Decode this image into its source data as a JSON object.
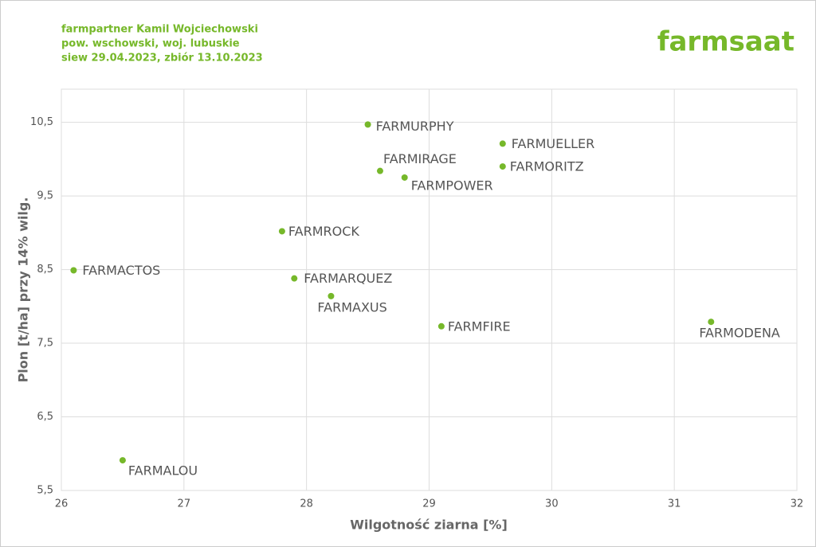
{
  "header": {
    "lines": [
      "farmpartner Kamil Wojciechowski",
      "pow. wschowski, woj. lubuskie",
      "siew 29.04.2023, zbiór 13.10.2023"
    ],
    "logo": "farmsaat"
  },
  "chart_data": {
    "type": "scatter",
    "x_label": "Wilgotność ziarna [%]",
    "y_label": "Plon [t/ha] przy 14% wilg.",
    "series": [
      {
        "color": "#76b82a",
        "labels": [
          "FARMURPHY",
          "FARMUELLER",
          "FARMORITZ",
          "FARMIRAGE",
          "FARMPOWER",
          "FARMROCK",
          "FARMACTOS",
          "FARMARQUEZ",
          "FARMAXUS",
          "FARMFIRE",
          "FARMODENA",
          "FARMALOU"
        ],
        "x": [
          28.5,
          29.6,
          29.6,
          28.6,
          28.8,
          27.8,
          26.1,
          27.9,
          28.2,
          29.1,
          31.3,
          26.5
        ],
        "values": [
          10.47,
          10.21,
          9.9,
          9.84,
          9.75,
          9.02,
          8.49,
          8.38,
          8.14,
          7.73,
          7.79,
          5.91
        ]
      }
    ],
    "xlim": [
      26,
      32
    ],
    "xticks": [
      26,
      27,
      28,
      29,
      30,
      31,
      32
    ],
    "ylim": [
      5.5,
      10.95
    ],
    "yticks": [
      {
        "value": 5.5,
        "label": "5,5"
      },
      {
        "value": 6.5,
        "label": "6,5"
      },
      {
        "value": 7.5,
        "label": "7,5"
      },
      {
        "value": 8.5,
        "label": "8,5"
      },
      {
        "value": 9.5,
        "label": "9,5"
      },
      {
        "value": 10.5,
        "label": "10,5"
      }
    ],
    "grid": true
  }
}
